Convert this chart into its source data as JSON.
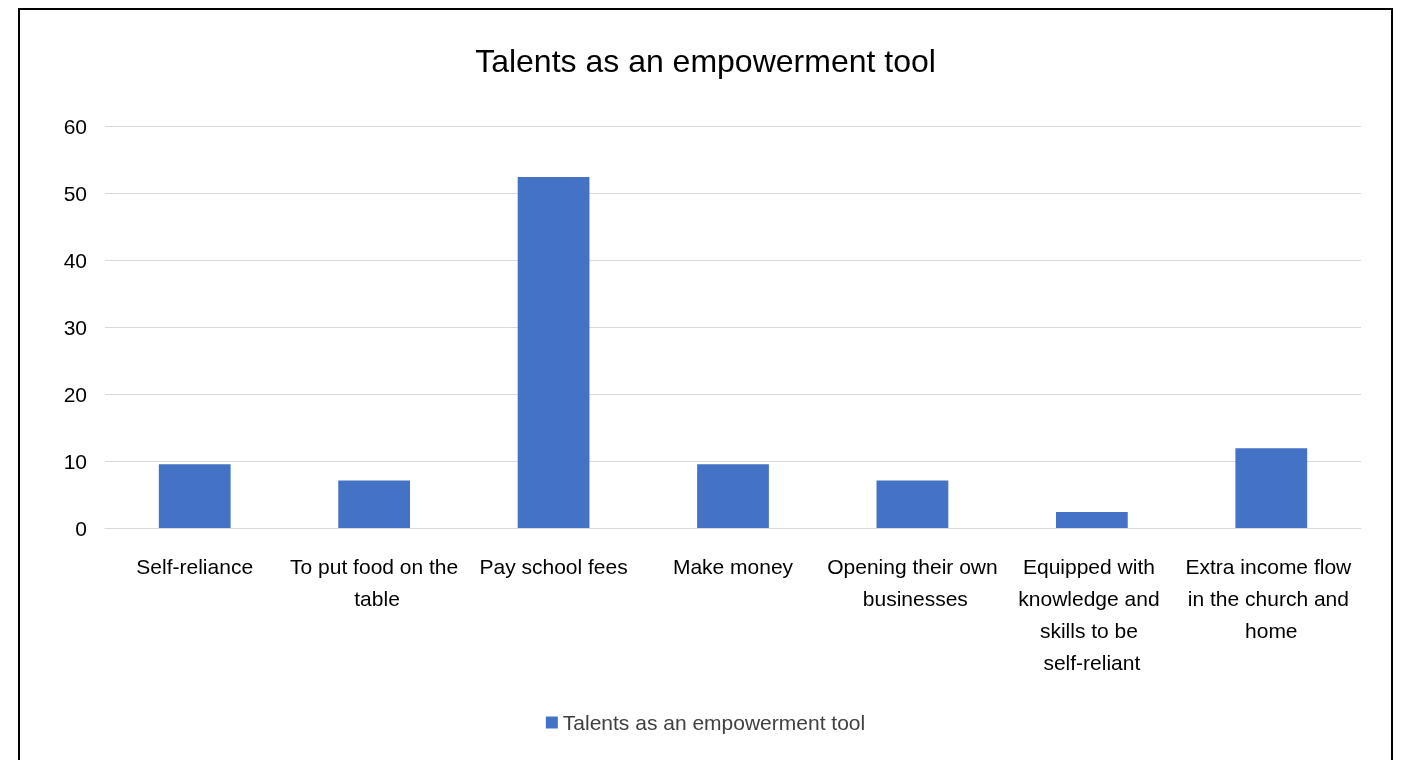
{
  "chart_data": {
    "type": "bar",
    "title": "Talents as an empowerment tool",
    "categories": [
      "Self-reliance",
      "To put food on the table",
      "Pay school fees",
      "Make money",
      "Opening their own businesses",
      "Equipped with knowledge and skills to be self-reliant",
      "Extra income flow in the church and home"
    ],
    "series": [
      {
        "name": "Talents as an empowerment tool",
        "color": "#4472c4",
        "values": [
          9.5,
          7.1,
          52.4,
          9.5,
          7.1,
          2.4,
          11.9
        ]
      }
    ],
    "ylim": [
      0,
      60
    ],
    "yticks": [
      0,
      10,
      20,
      30,
      40,
      50,
      60
    ],
    "grid": "y",
    "legend": "bottom"
  }
}
